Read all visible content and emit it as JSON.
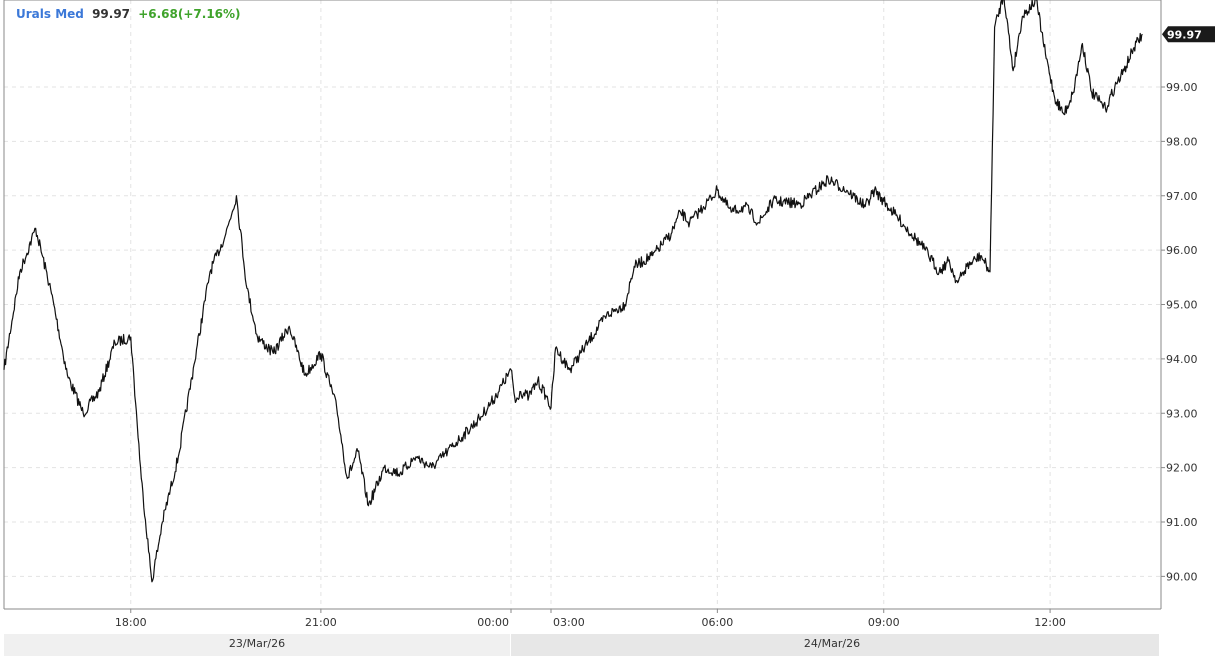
{
  "header": {
    "symbol": "Urals Med",
    "last": "99.97",
    "change": "+6.68(+7.16%)",
    "symbol_color": "#3b78d8",
    "last_color": "#333333",
    "change_color": "#3fa32b"
  },
  "chart_data": {
    "type": "line",
    "title": "",
    "xlabel": "",
    "ylabel": "",
    "ylim": [
      89.4,
      100.6
    ],
    "y_ticks": [
      "90.00",
      "91.00",
      "92.00",
      "93.00",
      "94.00",
      "95.00",
      "96.00",
      "97.00",
      "98.00",
      "99.00"
    ],
    "x_ticks": [
      "18:00",
      "21:00",
      "00:00",
      "03:00",
      "06:00",
      "09:00",
      "12:00"
    ],
    "date_labels": [
      "23/Mar/26",
      "24/Mar/26"
    ],
    "last_price_tag": "99.97",
    "grid": true,
    "series": [
      {
        "color": "#111111",
        "points": [
          [
            "23/Mar 16:00",
            93.8
          ],
          [
            "23/Mar 16:15",
            95.6
          ],
          [
            "23/Mar 16:30",
            96.4
          ],
          [
            "23/Mar 16:45",
            95.2
          ],
          [
            "23/Mar 17:00",
            93.7
          ],
          [
            "23/Mar 17:15",
            93.0
          ],
          [
            "23/Mar 17:30",
            93.4
          ],
          [
            "23/Mar 17:45",
            94.3
          ],
          [
            "23/Mar 18:00",
            94.4
          ],
          [
            "23/Mar 18:10",
            91.8
          ],
          [
            "23/Mar 18:20",
            89.9
          ],
          [
            "23/Mar 18:30",
            91.0
          ],
          [
            "23/Mar 18:45",
            92.2
          ],
          [
            "23/Mar 19:00",
            93.9
          ],
          [
            "23/Mar 19:15",
            95.6
          ],
          [
            "23/Mar 19:30",
            96.3
          ],
          [
            "23/Mar 19:40",
            97.0
          ],
          [
            "23/Mar 19:50",
            95.3
          ],
          [
            "23/Mar 20:00",
            94.4
          ],
          [
            "23/Mar 20:15",
            94.1
          ],
          [
            "23/Mar 20:30",
            94.6
          ],
          [
            "23/Mar 20:45",
            93.7
          ],
          [
            "23/Mar 21:00",
            94.1
          ],
          [
            "23/Mar 21:15",
            93.1
          ],
          [
            "23/Mar 21:25",
            91.8
          ],
          [
            "23/Mar 21:35",
            92.3
          ],
          [
            "23/Mar 21:45",
            91.3
          ],
          [
            "23/Mar 22:00",
            92.0
          ],
          [
            "23/Mar 22:15",
            91.9
          ],
          [
            "23/Mar 22:30",
            92.2
          ],
          [
            "23/Mar 22:45",
            92.0
          ],
          [
            "23/Mar 23:00",
            92.3
          ],
          [
            "23/Mar 23:15",
            92.6
          ],
          [
            "23/Mar 23:30",
            92.9
          ],
          [
            "23/Mar 23:45",
            93.3
          ],
          [
            "24/Mar 00:00",
            93.8
          ],
          [
            "24/Mar 00:05",
            93.2
          ],
          [
            "24/Mar 00:10",
            93.4
          ],
          [
            "24/Mar 00:20",
            93.3
          ],
          [
            "24/Mar 00:30",
            93.6
          ],
          [
            "24/Mar 00:40",
            93.3
          ],
          [
            "24/Mar 03:00",
            93.1
          ],
          [
            "24/Mar 03:05",
            94.2
          ],
          [
            "24/Mar 03:20",
            93.8
          ],
          [
            "24/Mar 03:40",
            94.3
          ],
          [
            "24/Mar 04:00",
            94.8
          ],
          [
            "24/Mar 04:20",
            95.0
          ],
          [
            "24/Mar 04:30",
            95.7
          ],
          [
            "24/Mar 04:50",
            95.9
          ],
          [
            "24/Mar 05:10",
            96.3
          ],
          [
            "24/Mar 05:20",
            96.7
          ],
          [
            "24/Mar 05:30",
            96.5
          ],
          [
            "24/Mar 05:45",
            96.8
          ],
          [
            "24/Mar 06:00",
            97.1
          ],
          [
            "24/Mar 06:15",
            96.7
          ],
          [
            "24/Mar 06:30",
            96.8
          ],
          [
            "24/Mar 06:45",
            96.5
          ],
          [
            "24/Mar 07:00",
            96.9
          ],
          [
            "24/Mar 07:30",
            96.85
          ],
          [
            "24/Mar 08:00",
            97.3
          ],
          [
            "24/Mar 08:20",
            97.1
          ],
          [
            "24/Mar 08:40",
            96.8
          ],
          [
            "24/Mar 08:50",
            97.1
          ],
          [
            "24/Mar 09:00",
            96.9
          ],
          [
            "24/Mar 09:15",
            96.6
          ],
          [
            "24/Mar 09:30",
            96.3
          ],
          [
            "24/Mar 09:45",
            96.0
          ],
          [
            "24/Mar 10:00",
            95.6
          ],
          [
            "24/Mar 10:10",
            95.8
          ],
          [
            "24/Mar 10:20",
            95.4
          ],
          [
            "24/Mar 10:30",
            95.7
          ],
          [
            "24/Mar 10:45",
            95.9
          ],
          [
            "24/Mar 10:55",
            95.6
          ],
          [
            "24/Mar 11:00",
            100.1
          ],
          [
            "24/Mar 11:10",
            100.7
          ],
          [
            "24/Mar 11:20",
            99.3
          ],
          [
            "24/Mar 11:30",
            100.3
          ],
          [
            "24/Mar 11:45",
            100.6
          ],
          [
            "24/Mar 11:55",
            99.6
          ],
          [
            "24/Mar 12:05",
            98.8
          ],
          [
            "24/Mar 12:15",
            98.5
          ],
          [
            "24/Mar 12:25",
            98.9
          ],
          [
            "24/Mar 12:35",
            99.8
          ],
          [
            "24/Mar 12:45",
            98.9
          ],
          [
            "24/Mar 13:00",
            98.6
          ],
          [
            "24/Mar 13:10",
            99.0
          ],
          [
            "24/Mar 13:20",
            99.3
          ],
          [
            "24/Mar 13:30",
            99.7
          ],
          [
            "24/Mar 13:40",
            99.97
          ]
        ]
      }
    ]
  }
}
